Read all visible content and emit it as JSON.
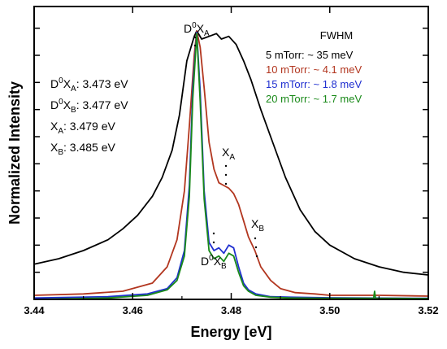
{
  "chart_data": {
    "type": "line",
    "xlabel": "Energy [eV]",
    "ylabel": "Normalized Intensity",
    "xlim": [
      3.44,
      3.52
    ],
    "ylim": [
      0,
      1.08
    ],
    "xticks": [
      {
        "value": 3.44,
        "label": "3.44"
      },
      {
        "value": 3.46,
        "label": "3.46"
      },
      {
        "value": 3.48,
        "label": "3.48"
      },
      {
        "value": 3.5,
        "label": "3.50"
      },
      {
        "value": 3.52,
        "label": "3.52"
      }
    ],
    "yticks": [
      0.1,
      0.2,
      0.3,
      0.4,
      0.5,
      0.6,
      0.7,
      0.8,
      0.9,
      1.0
    ],
    "grid": false,
    "legend": {
      "title": "FWHM",
      "entries": [
        {
          "label": "5 mTorr: ~ 35 meV",
          "color": "#000000"
        },
        {
          "label": "10 mTorr: ~ 4.1 meV",
          "color": "#b2361f"
        },
        {
          "label": "15 mTorr: ~ 1.8 meV",
          "color": "#1f2fd0"
        },
        {
          "label": "20 mTorr: ~ 1.7 meV",
          "color": "#1a8a1a"
        }
      ]
    },
    "peak_labels": [
      {
        "main": "D",
        "sup": "0",
        "rest": "X",
        "sub": "A",
        "x": 3.473
      },
      {
        "main": "",
        "sup": "",
        "rest": "X",
        "sub": "A",
        "x": 3.479
      },
      {
        "main": "",
        "sup": "",
        "rest": "X",
        "sub": "B",
        "x": 3.485
      },
      {
        "main": "D",
        "sup": "0",
        "rest": "X",
        "sub": "B",
        "x": 3.477
      }
    ],
    "energies": [
      {
        "pre_sup": "D",
        "sup": "0",
        "mid": "X",
        "sub": "A",
        "value": ": 3.473 eV"
      },
      {
        "pre_sup": "D",
        "sup": "0",
        "mid": "X",
        "sub": "B",
        "value": ": 3.477 eV"
      },
      {
        "pre_sup": "",
        "sup": "",
        "mid": "X",
        "sub": "A",
        "value": ": 3.479 eV"
      },
      {
        "pre_sup": "",
        "sup": "",
        "mid": "X",
        "sub": "B",
        "value": ": 3.485 eV"
      }
    ],
    "series": [
      {
        "color": "#000000",
        "x": [
          3.44,
          3.445,
          3.45,
          3.455,
          3.458,
          3.461,
          3.464,
          3.466,
          3.468,
          3.4695,
          3.471,
          3.4725,
          3.473,
          3.474,
          3.4755,
          3.477,
          3.478,
          3.4795,
          3.481,
          3.4825,
          3.484,
          3.486,
          3.488,
          3.491,
          3.494,
          3.497,
          3.5,
          3.505,
          3.51,
          3.515,
          3.52
        ],
        "y": [
          0.13,
          0.15,
          0.18,
          0.22,
          0.26,
          0.31,
          0.38,
          0.45,
          0.55,
          0.68,
          0.88,
          0.97,
          0.99,
          0.96,
          0.97,
          0.98,
          0.96,
          0.97,
          0.94,
          0.88,
          0.81,
          0.7,
          0.6,
          0.45,
          0.33,
          0.25,
          0.2,
          0.15,
          0.12,
          0.1,
          0.09
        ]
      },
      {
        "color": "#b2361f",
        "x": [
          3.44,
          3.45,
          3.458,
          3.464,
          3.467,
          3.469,
          3.4705,
          3.4715,
          3.4725,
          3.473,
          3.4737,
          3.4745,
          3.4755,
          3.4765,
          3.4775,
          3.4785,
          3.4795,
          3.4805,
          3.4815,
          3.4825,
          3.4835,
          3.4848,
          3.486,
          3.488,
          3.49,
          3.493,
          3.497,
          3.5,
          3.51,
          3.52
        ],
        "y": [
          0.015,
          0.02,
          0.03,
          0.06,
          0.12,
          0.22,
          0.4,
          0.64,
          0.9,
          0.99,
          0.93,
          0.78,
          0.58,
          0.48,
          0.43,
          0.42,
          0.41,
          0.39,
          0.35,
          0.29,
          0.23,
          0.18,
          0.12,
          0.07,
          0.04,
          0.025,
          0.02,
          0.015,
          0.015,
          0.012
        ]
      },
      {
        "color": "#1f2fd0",
        "x": [
          3.44,
          3.455,
          3.463,
          3.467,
          3.469,
          3.4705,
          3.4715,
          3.4722,
          3.473,
          3.4737,
          3.4745,
          3.4755,
          3.4765,
          3.4775,
          3.4785,
          3.4795,
          3.4805,
          3.4815,
          3.4825,
          3.4835,
          3.485,
          3.488,
          3.492,
          3.5,
          3.52
        ],
        "y": [
          0.005,
          0.01,
          0.02,
          0.04,
          0.08,
          0.18,
          0.42,
          0.78,
          0.985,
          0.77,
          0.4,
          0.21,
          0.18,
          0.19,
          0.17,
          0.2,
          0.19,
          0.12,
          0.06,
          0.035,
          0.02,
          0.01,
          0.008,
          0.006,
          0.004
        ]
      },
      {
        "color": "#1a8a1a",
        "x": [
          3.44,
          3.455,
          3.463,
          3.467,
          3.469,
          3.4705,
          3.4715,
          3.4722,
          3.473,
          3.4737,
          3.4745,
          3.4755,
          3.4765,
          3.4775,
          3.4785,
          3.4795,
          3.4805,
          3.4815,
          3.4825,
          3.4835,
          3.485,
          3.488,
          3.492,
          3.5,
          3.5089,
          3.5091,
          3.5093,
          3.52
        ],
        "y": [
          0.0,
          0.005,
          0.015,
          0.035,
          0.07,
          0.16,
          0.38,
          0.74,
          0.98,
          0.73,
          0.37,
          0.18,
          0.15,
          0.16,
          0.14,
          0.17,
          0.16,
          0.1,
          0.05,
          0.03,
          0.015,
          0.008,
          0.005,
          0.004,
          0.004,
          0.03,
          0.004,
          0.003
        ]
      }
    ]
  }
}
